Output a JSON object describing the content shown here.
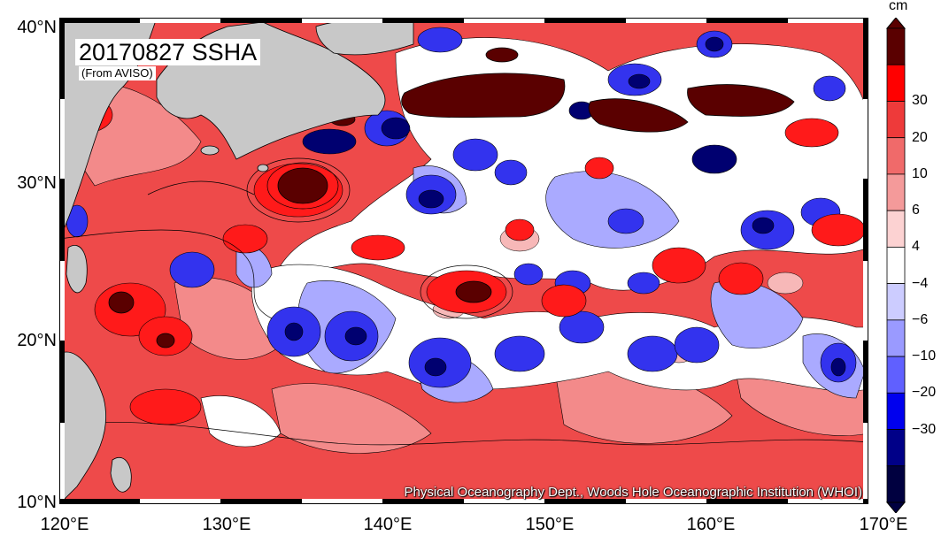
{
  "map": {
    "title": "20170827 SSHA",
    "source": "(From AVISO)",
    "credit": "Physical Oceanography Dept., Woods Hole Oceanographic Institution (WHOI)",
    "lat_ticks": [
      "40°N",
      "30°N",
      "20°N",
      "10°N"
    ],
    "lon_ticks": [
      "120°E",
      "130°E",
      "140°E",
      "150°E",
      "160°E",
      "170°E"
    ],
    "extent": {
      "lon_min": 120,
      "lon_max": 170,
      "lat_min": 10,
      "lat_max": 40
    }
  },
  "colorbar": {
    "unit": "cm",
    "labels": [
      "30",
      "20",
      "10",
      "6",
      "4",
      "−4",
      "−6",
      "−10",
      "−20",
      "−30"
    ],
    "colors": [
      "#5a0000",
      "#ff0000",
      "#ee3a3a",
      "#f06a6a",
      "#f49a9a",
      "#fcd2d2",
      "#ffffff",
      "#ccccff",
      "#9a9aff",
      "#6060ff",
      "#0000ee",
      "#000088",
      "#000040"
    ]
  },
  "palette": {
    "land": "#c8c8c8",
    "background_anomaly": "#f06a6a",
    "strong_positive": "#5a0000",
    "positive": "#ee3a3a",
    "neutral": "#ffffff",
    "negative": "#6060ff",
    "strong_negative": "#000088"
  }
}
